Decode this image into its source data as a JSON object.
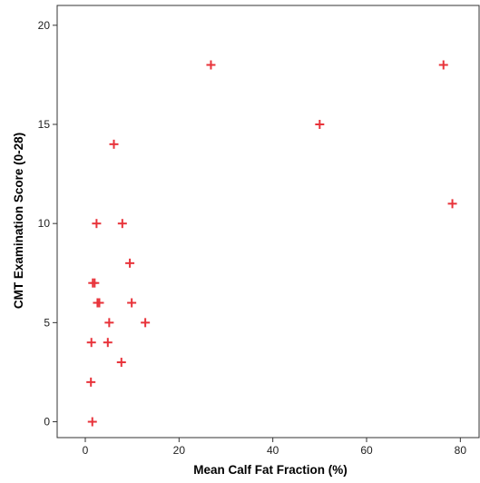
{
  "chart_data": {
    "type": "scatter",
    "xlabel": "Mean Calf Fat Fraction (%)",
    "ylabel": "CMT Examination Score (0-28)",
    "xlim": [
      -6,
      84
    ],
    "ylim": [
      -0.8,
      21
    ],
    "x_ticks": [
      0,
      20,
      40,
      60,
      80
    ],
    "y_ticks": [
      0,
      5,
      10,
      15,
      20
    ],
    "marker": "plus",
    "marker_color": "#e8333a",
    "grid": false,
    "legend": "none",
    "points": [
      {
        "x": 1.5,
        "y": 0
      },
      {
        "x": 1.2,
        "y": 2
      },
      {
        "x": 1.3,
        "y": 4
      },
      {
        "x": 4.8,
        "y": 4
      },
      {
        "x": 7.7,
        "y": 3
      },
      {
        "x": 5.1,
        "y": 5
      },
      {
        "x": 12.8,
        "y": 5
      },
      {
        "x": 2.6,
        "y": 6
      },
      {
        "x": 3.0,
        "y": 6
      },
      {
        "x": 9.9,
        "y": 6
      },
      {
        "x": 1.6,
        "y": 7
      },
      {
        "x": 2.0,
        "y": 7
      },
      {
        "x": 9.5,
        "y": 8
      },
      {
        "x": 2.4,
        "y": 10
      },
      {
        "x": 7.9,
        "y": 10
      },
      {
        "x": 6.1,
        "y": 14
      },
      {
        "x": 26.8,
        "y": 18
      },
      {
        "x": 50.0,
        "y": 15
      },
      {
        "x": 76.4,
        "y": 18
      },
      {
        "x": 78.3,
        "y": 11
      }
    ]
  }
}
